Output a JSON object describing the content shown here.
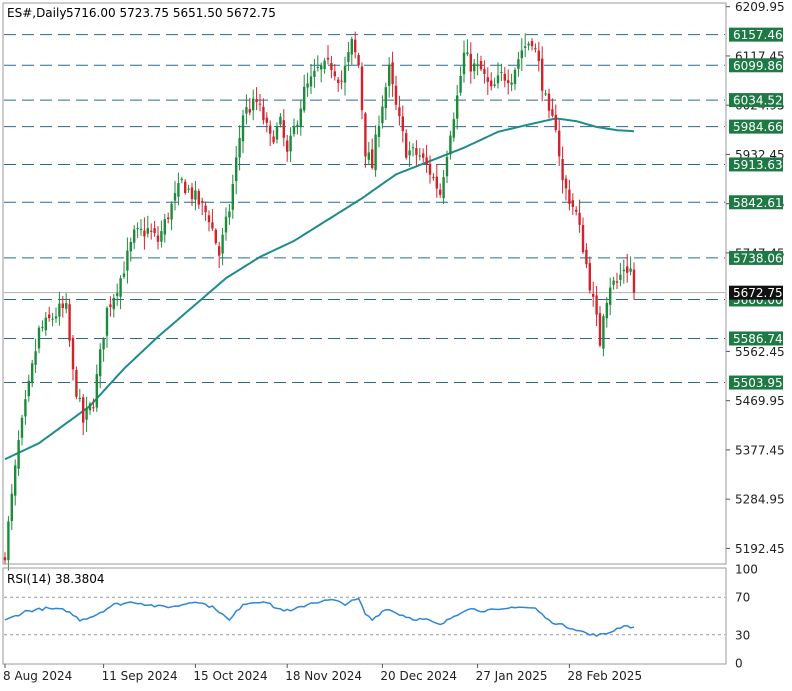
{
  "header": {
    "symbol": "ES#,Daily",
    "ohlc": "5716.00 5723.75 5651.50 5672.75"
  },
  "colors": {
    "up": "#1e8a3c",
    "down": "#d3222a",
    "ma": "#1e8c8c",
    "level_line": "#2b6a8e",
    "rsi": "#2f86d6",
    "label_bg": "#1e7a45",
    "current_bg": "#111111"
  },
  "chart_data": [
    {
      "type": "candlestick",
      "title": "ES#,Daily",
      "price_scale_labels": [
        "6209.95",
        "6117.45",
        "6024.95",
        "5932.45",
        "5839.95",
        "5747.45",
        "5562.45",
        "5469.95",
        "5377.45",
        "5284.95",
        "5192.45"
      ],
      "ylim": [
        5165,
        6215
      ],
      "x_tick_labels": [
        "8 Aug 2024",
        "11 Sep 2024",
        "15 Oct 2024",
        "18 Nov 2024",
        "20 Dec 2024",
        "27 Jan 2025",
        "28 Feb 2025"
      ],
      "current_price": "5672.75",
      "horizontal_levels": [
        "6157.46",
        "6099.86",
        "6034.52",
        "5984.66",
        "5913.63",
        "5842.61",
        "5738.06",
        "5660.00",
        "5586.74",
        "5503.95"
      ],
      "close_keypoints": [
        [
          0,
          5185
        ],
        [
          4,
          5390
        ],
        [
          10,
          5600
        ],
        [
          16,
          5640
        ],
        [
          18,
          5640
        ],
        [
          20,
          5520
        ],
        [
          23,
          5430
        ],
        [
          26,
          5470
        ],
        [
          30,
          5640
        ],
        [
          34,
          5700
        ],
        [
          38,
          5780
        ],
        [
          42,
          5790
        ],
        [
          45,
          5770
        ],
        [
          48,
          5820
        ],
        [
          52,
          5880
        ],
        [
          56,
          5850
        ],
        [
          60,
          5815
        ],
        [
          63,
          5745
        ],
        [
          66,
          5830
        ],
        [
          70,
          6010
        ],
        [
          74,
          6030
        ],
        [
          76,
          6000
        ],
        [
          78,
          5960
        ],
        [
          81,
          5990
        ],
        [
          83,
          5930
        ],
        [
          88,
          6050
        ],
        [
          92,
          6090
        ],
        [
          96,
          6100
        ],
        [
          99,
          6070
        ],
        [
          102,
          6140
        ],
        [
          104,
          6100
        ],
        [
          106,
          5940
        ],
        [
          108,
          5910
        ],
        [
          110,
          6000
        ],
        [
          113,
          6090
        ],
        [
          115,
          6020
        ],
        [
          118,
          5940
        ],
        [
          122,
          5930
        ],
        [
          125,
          5900
        ],
        [
          128,
          5860
        ],
        [
          131,
          5980
        ],
        [
          133,
          6040
        ],
        [
          135,
          6120
        ],
        [
          137,
          6100
        ],
        [
          140,
          6090
        ],
        [
          143,
          6050
        ],
        [
          146,
          6080
        ],
        [
          149,
          6080
        ],
        [
          152,
          6130
        ],
        [
          155,
          6150
        ],
        [
          157,
          6100
        ],
        [
          160,
          6000
        ],
        [
          162,
          5990
        ],
        [
          164,
          5880
        ],
        [
          166,
          5850
        ],
        [
          168,
          5820
        ],
        [
          170,
          5760
        ],
        [
          172,
          5690
        ],
        [
          174,
          5620
        ],
        [
          175,
          5580
        ],
        [
          176,
          5640
        ],
        [
          178,
          5690
        ],
        [
          180,
          5690
        ],
        [
          182,
          5720
        ],
        [
          184,
          5716
        ],
        [
          185,
          5673
        ]
      ],
      "ma_keypoints": [
        [
          0,
          5360
        ],
        [
          10,
          5390
        ],
        [
          25,
          5460
        ],
        [
          35,
          5530
        ],
        [
          45,
          5590
        ],
        [
          55,
          5645
        ],
        [
          65,
          5700
        ],
        [
          75,
          5740
        ],
        [
          85,
          5770
        ],
        [
          95,
          5810
        ],
        [
          105,
          5850
        ],
        [
          115,
          5895
        ],
        [
          125,
          5920
        ],
        [
          135,
          5945
        ],
        [
          145,
          5975
        ],
        [
          155,
          5990
        ],
        [
          162,
          6000
        ],
        [
          168,
          5995
        ],
        [
          174,
          5984
        ],
        [
          180,
          5978
        ],
        [
          185,
          5976
        ]
      ],
      "rsi": {
        "label": "RSI(14) 38.3804",
        "scale_labels": [
          "100",
          "70",
          "30",
          "0"
        ],
        "levels": [
          70,
          30
        ],
        "keypoints": [
          [
            0,
            45
          ],
          [
            6,
            55
          ],
          [
            12,
            58
          ],
          [
            18,
            56
          ],
          [
            22,
            46
          ],
          [
            26,
            50
          ],
          [
            32,
            62
          ],
          [
            38,
            65
          ],
          [
            45,
            60
          ],
          [
            50,
            60
          ],
          [
            56,
            66
          ],
          [
            62,
            58
          ],
          [
            66,
            45
          ],
          [
            70,
            63
          ],
          [
            76,
            66
          ],
          [
            80,
            58
          ],
          [
            84,
            55
          ],
          [
            90,
            64
          ],
          [
            96,
            67
          ],
          [
            100,
            63
          ],
          [
            104,
            68
          ],
          [
            106,
            52
          ],
          [
            108,
            46
          ],
          [
            112,
            58
          ],
          [
            116,
            52
          ],
          [
            120,
            47
          ],
          [
            124,
            46
          ],
          [
            128,
            40
          ],
          [
            132,
            50
          ],
          [
            136,
            58
          ],
          [
            140,
            56
          ],
          [
            146,
            56
          ],
          [
            150,
            60
          ],
          [
            156,
            58
          ],
          [
            160,
            45
          ],
          [
            164,
            40
          ],
          [
            168,
            36
          ],
          [
            172,
            30
          ],
          [
            176,
            30
          ],
          [
            178,
            33
          ],
          [
            182,
            40
          ],
          [
            185,
            38
          ]
        ]
      }
    }
  ]
}
